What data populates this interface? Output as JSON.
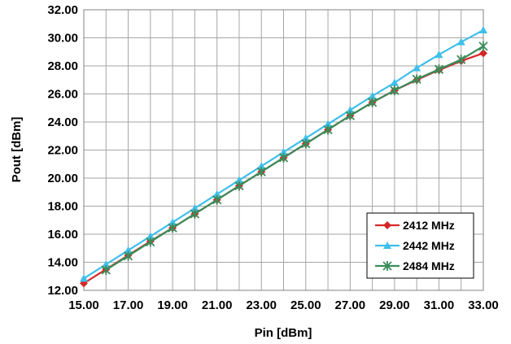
{
  "chart_data": {
    "type": "line",
    "title": "",
    "xlabel": "Pin [dBm]",
    "ylabel": "Pout [dBm]",
    "xlim": [
      15,
      33
    ],
    "ylim": [
      12,
      32
    ],
    "x_ticks": [
      "15.00",
      "17.00",
      "19.00",
      "21.00",
      "23.00",
      "25.00",
      "27.00",
      "29.00",
      "31.00",
      "33.00"
    ],
    "y_ticks": [
      "12.00",
      "14.00",
      "16.00",
      "18.00",
      "20.00",
      "22.00",
      "24.00",
      "26.00",
      "28.00",
      "30.00",
      "32.00"
    ],
    "grid": true,
    "legend_position": "bottom-right",
    "series": [
      {
        "name": "2412 MHz",
        "color": "#d62728",
        "marker": "diamond",
        "x": [
          15,
          16,
          17,
          18,
          19,
          20,
          21,
          22,
          23,
          24,
          25,
          26,
          27,
          28,
          29,
          30,
          31,
          32,
          33
        ],
        "y": [
          12.5,
          13.5,
          14.5,
          15.5,
          16.45,
          17.45,
          18.45,
          19.45,
          20.45,
          21.45,
          22.45,
          23.45,
          24.45,
          25.4,
          26.25,
          27.0,
          27.7,
          28.35,
          28.9
        ]
      },
      {
        "name": "2442 MHz",
        "color": "#3fbfea",
        "marker": "triangle",
        "x": [
          15,
          16,
          17,
          18,
          19,
          20,
          21,
          22,
          23,
          24,
          25,
          26,
          27,
          28,
          29,
          30,
          31,
          32,
          33
        ],
        "y": [
          12.85,
          13.85,
          14.85,
          15.85,
          16.85,
          17.85,
          18.85,
          19.85,
          20.85,
          21.85,
          22.85,
          23.85,
          24.85,
          25.85,
          26.8,
          27.85,
          28.8,
          29.7,
          30.55
        ]
      },
      {
        "name": "2484 MHz",
        "color": "#3a8c5a",
        "marker": "star",
        "x": [
          16,
          17,
          18,
          19,
          20,
          21,
          22,
          23,
          24,
          25,
          26,
          27,
          28,
          29,
          30,
          31,
          32,
          33
        ],
        "y": [
          13.45,
          14.45,
          15.45,
          16.45,
          17.45,
          18.45,
          19.45,
          20.45,
          21.45,
          22.45,
          23.45,
          24.45,
          25.4,
          26.25,
          27.05,
          27.75,
          28.45,
          29.4
        ]
      }
    ]
  }
}
